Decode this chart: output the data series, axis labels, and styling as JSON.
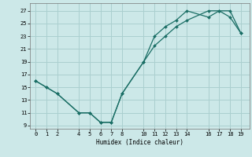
{
  "title": "",
  "xlabel": "Humidex (Indice chaleur)",
  "bg_color": "#cce8e8",
  "grid_color": "#aacfcf",
  "line_color": "#1a6e65",
  "marker_color": "#1a6e65",
  "upper_x": [
    0,
    1,
    2,
    4,
    5,
    6,
    7,
    8,
    10,
    11,
    12,
    13,
    14,
    16,
    17,
    18,
    19
  ],
  "upper_y": [
    16,
    15,
    14,
    11,
    11,
    9.5,
    9.5,
    14,
    19,
    21.5,
    23,
    24.5,
    25.5,
    27,
    27,
    27,
    23.5
  ],
  "lower_x": [
    19,
    18,
    17,
    16,
    14,
    13,
    12,
    11,
    10,
    8,
    7,
    6,
    5,
    4,
    2,
    1,
    0
  ],
  "lower_y": [
    23.5,
    26,
    27,
    26,
    27,
    25.5,
    24.5,
    23,
    19,
    14,
    9.5,
    9.5,
    11,
    11,
    14,
    15,
    16
  ],
  "xlim": [
    -0.5,
    19.8
  ],
  "ylim": [
    8.5,
    28.2
  ],
  "xticks": [
    0,
    1,
    2,
    4,
    5,
    6,
    7,
    8,
    10,
    11,
    12,
    13,
    14,
    16,
    17,
    18,
    19
  ],
  "yticks": [
    9,
    11,
    13,
    15,
    17,
    19,
    21,
    23,
    25,
    27
  ]
}
